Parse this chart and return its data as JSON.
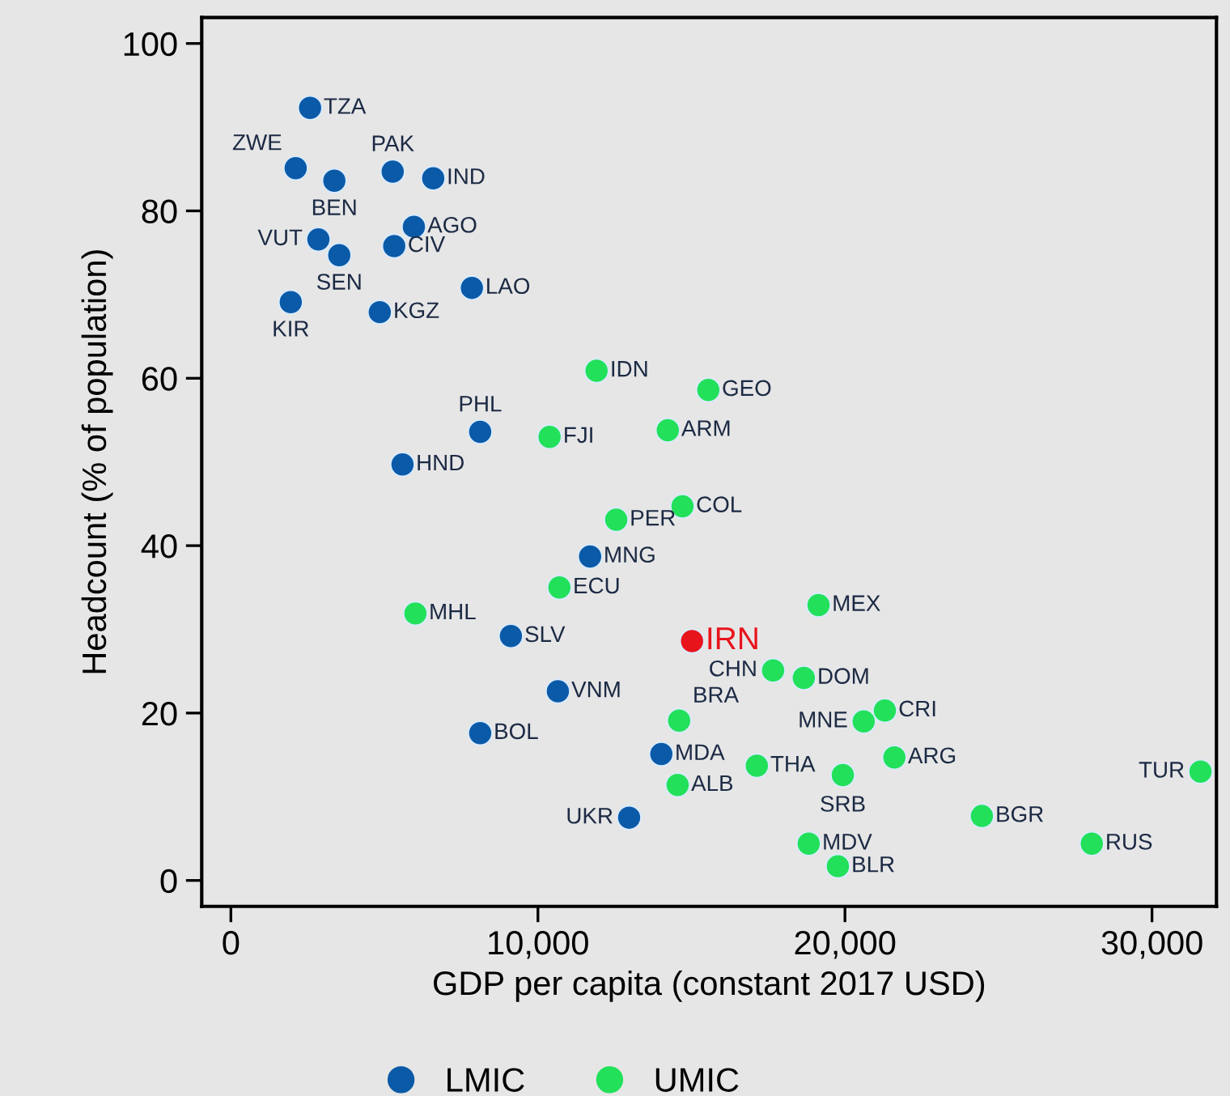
{
  "chart_data": {
    "type": "scatter",
    "xlabel": "GDP per capita (constant 2017 USD)",
    "ylabel": "Headcount (% of population)",
    "xlim": [
      -950,
      32100
    ],
    "ylim": [
      -3.1,
      103.1
    ],
    "xticks": [
      0,
      {
        "value": 10000,
        "label": "10,000"
      },
      {
        "value": 20000,
        "label": "20,000"
      },
      {
        "value": 30000,
        "label": "30,000"
      }
    ],
    "yticks": [
      0,
      20,
      40,
      60,
      80,
      100
    ],
    "grid": false,
    "legend": "bottom",
    "marker": "circle",
    "series": [
      {
        "name": "LMIC",
        "color": "#0b5aa8",
        "x": [
          2580,
          2110,
          3370,
          5270,
          6590,
          5960,
          5320,
          2850,
          3530,
          7850,
          1950,
          4850,
          8120,
          5590,
          11700,
          9120,
          10650,
          8120,
          14020,
          12970
        ],
        "values": [
          92.3,
          85.1,
          83.6,
          84.7,
          83.9,
          78.1,
          75.8,
          76.6,
          74.7,
          70.8,
          69.1,
          67.9,
          53.6,
          49.7,
          38.7,
          29.2,
          22.6,
          17.6,
          15.1,
          7.5
        ],
        "value_labels": [
          "TZA",
          "ZWE",
          "BEN",
          "PAK",
          "IND",
          "AGO",
          "CIV",
          "VUT",
          "SEN",
          "LAO",
          "KIR",
          "KGZ",
          "PHL",
          "HND",
          "MNG",
          "SLV",
          "VNM",
          "BOL",
          "MDA",
          "UKR"
        ]
      },
      {
        "name": "UMIC",
        "color": "#22e05a",
        "x": [
          11910,
          15550,
          10380,
          14230,
          14710,
          12550,
          10700,
          6010,
          17660,
          18660,
          19140,
          21300,
          20610,
          21610,
          17130,
          19930,
          31580,
          24460,
          28040,
          18820,
          19770,
          14600,
          14550
        ],
        "values": [
          60.9,
          58.6,
          53.0,
          53.8,
          44.7,
          43.1,
          35.0,
          31.9,
          25.1,
          24.2,
          32.9,
          20.3,
          19.0,
          14.7,
          13.7,
          12.6,
          13.0,
          7.7,
          4.4,
          4.4,
          1.7,
          19.1,
          11.4
        ],
        "value_labels": [
          "IDN",
          "GEO",
          "FJI",
          "ARM",
          "COL",
          "PER",
          "ECU",
          "MHL",
          "CHN",
          "DOM",
          "MEX",
          "CRI",
          "MNE",
          "ARG",
          "THA",
          "SRB",
          "TUR",
          "BGR",
          "RUS",
          "MDV",
          "BLR",
          "BRA",
          "ALB"
        ]
      },
      {
        "color": "#e8141c",
        "x": [
          15020
        ],
        "values": [
          28.6
        ],
        "value_labels": [
          "IRN"
        ]
      }
    ]
  }
}
